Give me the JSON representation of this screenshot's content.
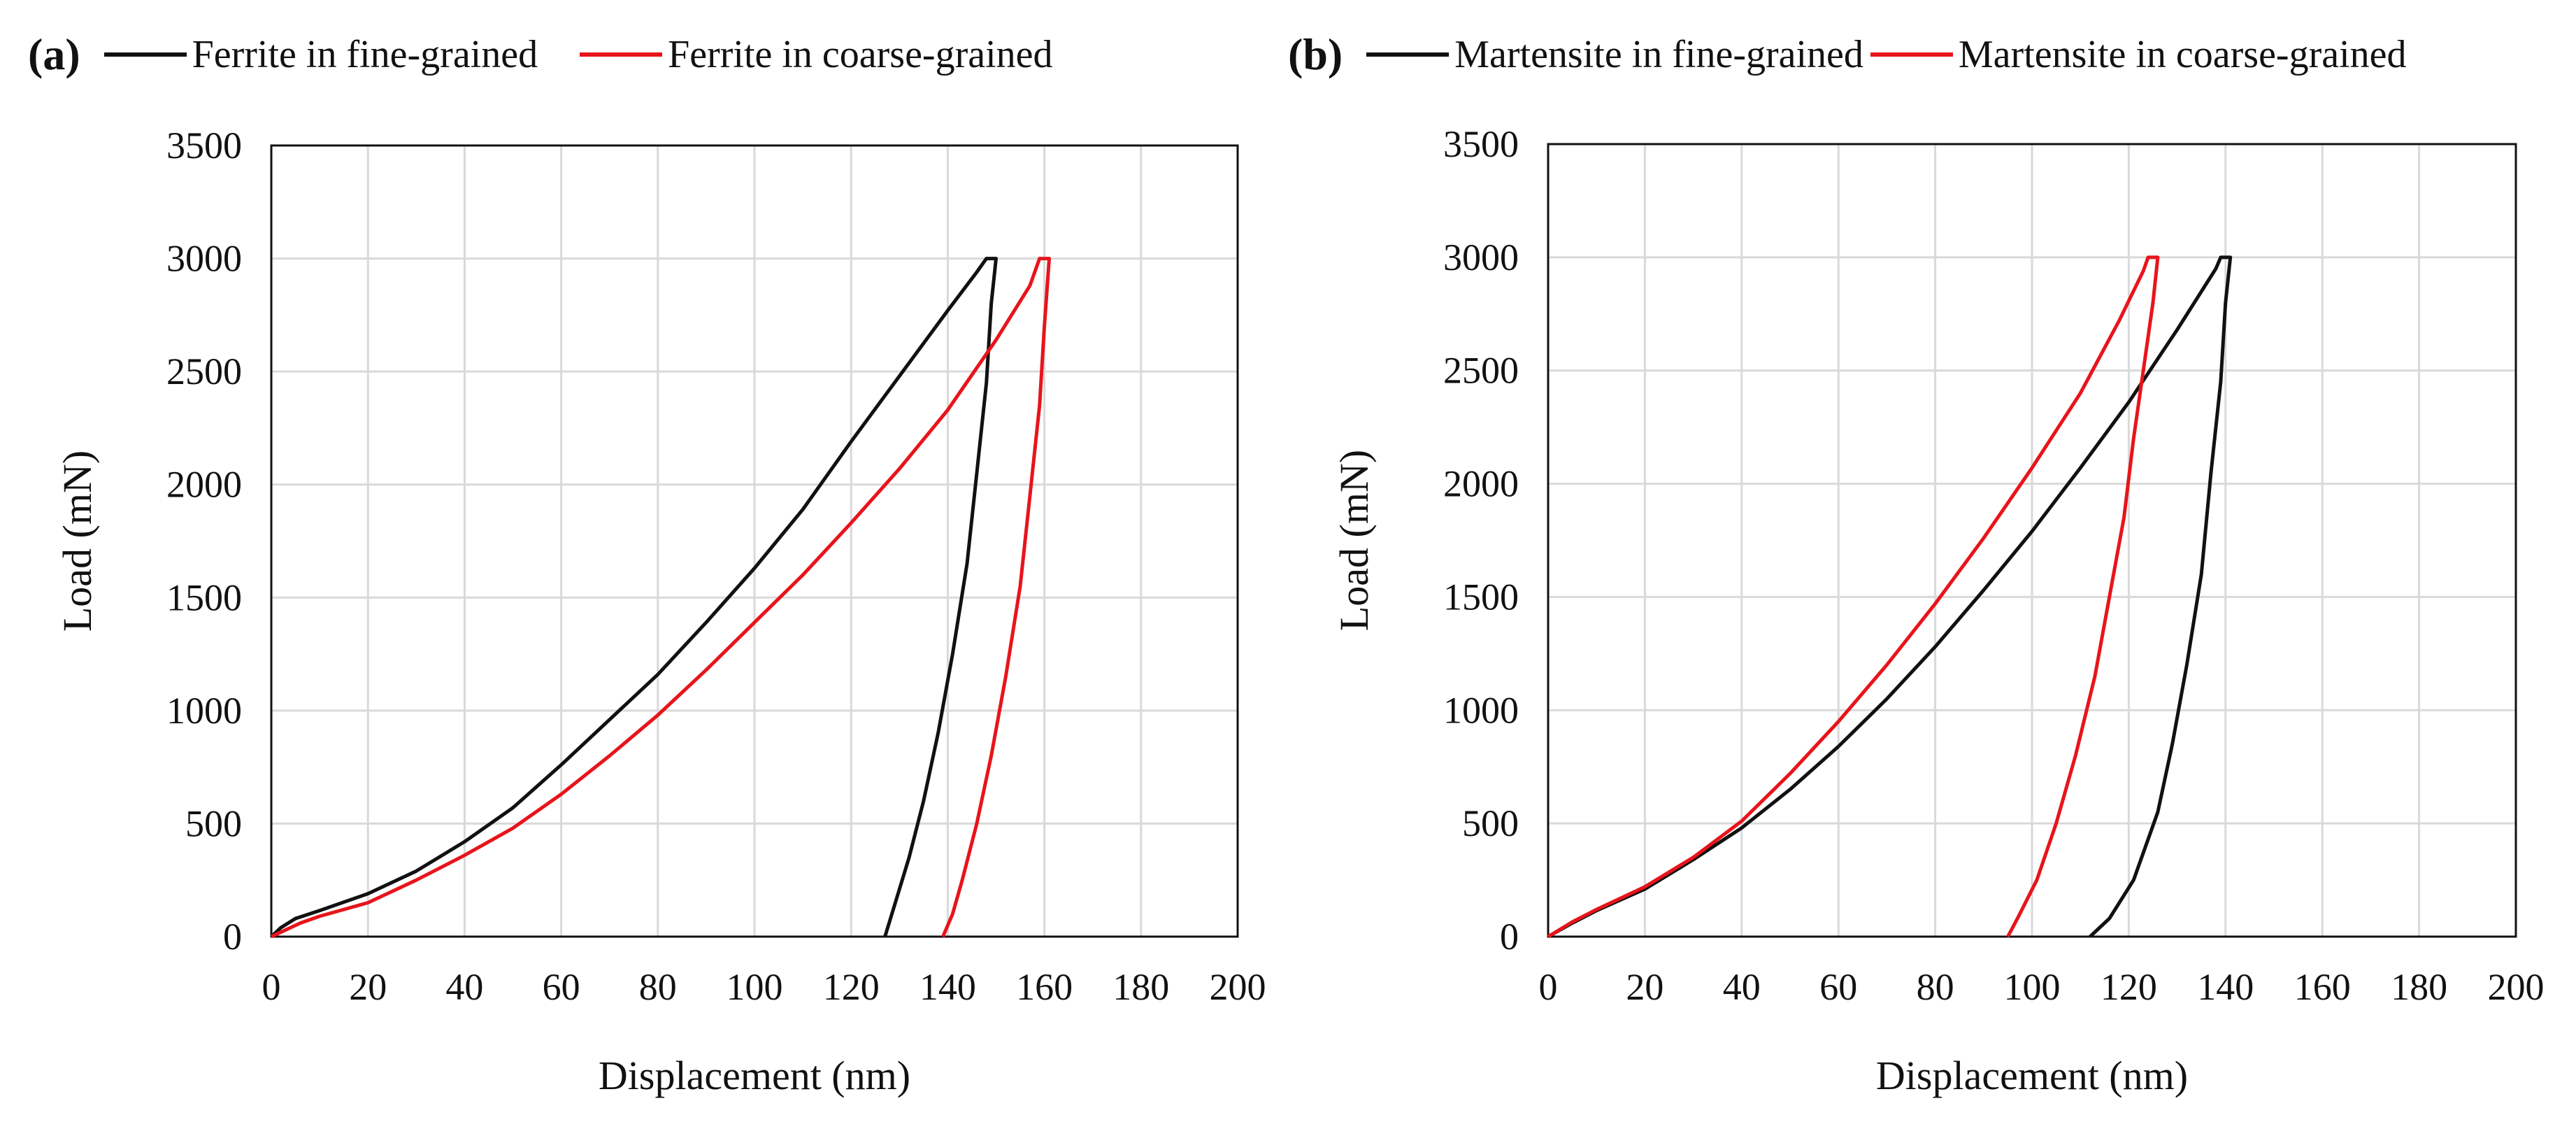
{
  "colors": {
    "fine": "#111111",
    "coarse": "#e8141b",
    "grid": "#d9d9d9",
    "axis": "#111111"
  },
  "chart_data": [
    {
      "type": "line",
      "panel_label": "(a)",
      "title": "",
      "xlabel": "Displacement (nm)",
      "ylabel": "Load (mN)",
      "xlim": [
        0,
        200
      ],
      "ylim": [
        0,
        3500
      ],
      "xticks": [
        0,
        20,
        40,
        60,
        80,
        100,
        120,
        140,
        160,
        180,
        200
      ],
      "yticks": [
        0,
        500,
        1000,
        1500,
        2000,
        2500,
        3000,
        3500
      ],
      "grid": true,
      "legend_position": "top",
      "series": [
        {
          "name": "Ferrite in fine-grained",
          "color": "#111111",
          "points": [
            [
              0,
              0
            ],
            [
              2,
              40
            ],
            [
              5,
              80
            ],
            [
              10,
              115
            ],
            [
              20,
              190
            ],
            [
              30,
              290
            ],
            [
              40,
              420
            ],
            [
              50,
              570
            ],
            [
              60,
              760
            ],
            [
              70,
              960
            ],
            [
              80,
              1160
            ],
            [
              90,
              1390
            ],
            [
              100,
              1630
            ],
            [
              110,
              1890
            ],
            [
              120,
              2190
            ],
            [
              130,
              2480
            ],
            [
              140,
              2770
            ],
            [
              146,
              2940
            ],
            [
              148,
              3000
            ],
            [
              150,
              3000
            ],
            [
              149,
              2800
            ],
            [
              148,
              2450
            ],
            [
              146,
              2050
            ],
            [
              144,
              1650
            ],
            [
              141,
              1250
            ],
            [
              138,
              900
            ],
            [
              135,
              600
            ],
            [
              132,
              350
            ],
            [
              129,
              140
            ],
            [
              127,
              0
            ]
          ]
        },
        {
          "name": "Ferrite in coarse-grained",
          "color": "#e8141b",
          "points": [
            [
              0,
              0
            ],
            [
              3,
              30
            ],
            [
              6,
              60
            ],
            [
              10,
              90
            ],
            [
              20,
              150
            ],
            [
              30,
              250
            ],
            [
              40,
              360
            ],
            [
              50,
              480
            ],
            [
              60,
              630
            ],
            [
              70,
              800
            ],
            [
              80,
              980
            ],
            [
              90,
              1180
            ],
            [
              100,
              1390
            ],
            [
              110,
              1600
            ],
            [
              120,
              1830
            ],
            [
              130,
              2070
            ],
            [
              140,
              2330
            ],
            [
              150,
              2640
            ],
            [
              157,
              2880
            ],
            [
              159,
              3000
            ],
            [
              161,
              3000
            ],
            [
              160,
              2700
            ],
            [
              159,
              2350
            ],
            [
              157,
              1950
            ],
            [
              155,
              1550
            ],
            [
              152,
              1150
            ],
            [
              149,
              800
            ],
            [
              146,
              500
            ],
            [
              143,
              250
            ],
            [
              141,
              100
            ],
            [
              139,
              0
            ]
          ]
        }
      ]
    },
    {
      "type": "line",
      "panel_label": "(b)",
      "title": "",
      "xlabel": "Displacement (nm)",
      "ylabel": "Load (mN)",
      "xlim": [
        0,
        200
      ],
      "ylim": [
        0,
        3500
      ],
      "xticks": [
        0,
        20,
        40,
        60,
        80,
        100,
        120,
        140,
        160,
        180,
        200
      ],
      "yticks": [
        0,
        500,
        1000,
        1500,
        2000,
        2500,
        3000,
        3500
      ],
      "grid": true,
      "legend_position": "top",
      "series": [
        {
          "name": "Martensite in fine-grained",
          "color": "#111111",
          "points": [
            [
              0,
              0
            ],
            [
              5,
              60
            ],
            [
              10,
              115
            ],
            [
              20,
              210
            ],
            [
              30,
              340
            ],
            [
              40,
              480
            ],
            [
              50,
              650
            ],
            [
              60,
              840
            ],
            [
              70,
              1050
            ],
            [
              80,
              1280
            ],
            [
              90,
              1530
            ],
            [
              100,
              1790
            ],
            [
              110,
              2070
            ],
            [
              120,
              2360
            ],
            [
              130,
              2680
            ],
            [
              138,
              2950
            ],
            [
              139,
              3000
            ],
            [
              141,
              3000
            ],
            [
              140,
              2800
            ],
            [
              139,
              2450
            ],
            [
              137,
              2050
            ],
            [
              135,
              1600
            ],
            [
              132,
              1200
            ],
            [
              129,
              850
            ],
            [
              126,
              550
            ],
            [
              121,
              250
            ],
            [
              116,
              80
            ],
            [
              112,
              0
            ]
          ]
        },
        {
          "name": "Martensite in coarse-grained",
          "color": "#e8141b",
          "points": [
            [
              0,
              0
            ],
            [
              5,
              65
            ],
            [
              10,
              120
            ],
            [
              20,
              220
            ],
            [
              30,
              350
            ],
            [
              40,
              510
            ],
            [
              50,
              720
            ],
            [
              60,
              950
            ],
            [
              70,
              1200
            ],
            [
              80,
              1470
            ],
            [
              90,
              1760
            ],
            [
              100,
              2070
            ],
            [
              110,
              2400
            ],
            [
              118,
              2720
            ],
            [
              123,
              2940
            ],
            [
              124,
              3000
            ],
            [
              126,
              3000
            ],
            [
              125,
              2800
            ],
            [
              123,
              2500
            ],
            [
              121,
              2200
            ],
            [
              119,
              1850
            ],
            [
              116,
              1500
            ],
            [
              113,
              1150
            ],
            [
              109,
              800
            ],
            [
              105,
              500
            ],
            [
              101,
              250
            ],
            [
              97,
              80
            ],
            [
              95,
              0
            ]
          ]
        }
      ]
    }
  ]
}
